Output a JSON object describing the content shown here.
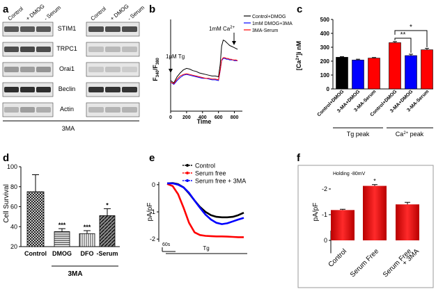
{
  "panels": {
    "a": "a",
    "b": "b",
    "c": "c",
    "d": "d",
    "e": "e",
    "f": "f"
  },
  "panel_a": {
    "columns_left": [
      "Control",
      "+ DMOG",
      "- Serum"
    ],
    "columns_right": [
      "Control",
      "+ DMOG",
      "- Serum"
    ],
    "rows": [
      "STIM1",
      "TRPC1",
      "Orai1",
      "Beclin",
      "Actin"
    ],
    "treatment_label": "3MA"
  },
  "chart_data": [
    {
      "panel": "b",
      "type": "line",
      "xlabel": "Time",
      "ylabel": "F340/F380",
      "ylabel_main": "F",
      "ylabel_sub1": "340",
      "ylabel_sep": "/F",
      "ylabel_sub2": "380",
      "xlim": [
        0,
        900
      ],
      "ylim": [
        0.0,
        1.2
      ],
      "xticks": [
        "0",
        "200",
        "400",
        "600",
        "800"
      ],
      "yticks": [
        "0.0",
        "0.2",
        "0.4",
        "0.6",
        "0.8",
        "1.0",
        "1.2"
      ],
      "annotations": [
        "1μM Tg",
        "1mM Ca2+"
      ],
      "annotation_tg": "1μM Tg",
      "annotation_ca": "1mM Ca",
      "annotation_ca_sup": "2+",
      "series": [
        {
          "name": "Control+DMOG",
          "color": "#000000",
          "x": [
            0,
            40,
            80,
            120,
            160,
            200,
            240,
            280,
            320,
            360,
            400,
            440,
            480,
            520,
            560,
            600,
            620,
            640,
            660,
            680,
            700,
            720,
            740,
            760,
            780,
            800,
            820,
            840
          ],
          "y": [
            0.4,
            0.37,
            0.45,
            0.5,
            0.54,
            0.56,
            0.55,
            0.53,
            0.52,
            0.5,
            0.49,
            0.48,
            0.47,
            0.46,
            0.46,
            0.45,
            0.6,
            0.85,
            0.93,
            0.92,
            0.9,
            0.88,
            0.86,
            0.85,
            0.84,
            0.83,
            0.82,
            0.81
          ]
        },
        {
          "name": "1mM DMOG+3MA",
          "color": "#0000ff",
          "x": [
            0,
            40,
            80,
            120,
            160,
            200,
            240,
            280,
            320,
            360,
            400,
            440,
            480,
            520,
            560,
            600,
            620,
            640,
            660,
            680,
            700,
            720,
            740,
            760,
            780,
            800,
            820,
            840
          ],
          "y": [
            0.38,
            0.35,
            0.4,
            0.44,
            0.47,
            0.48,
            0.47,
            0.46,
            0.45,
            0.44,
            0.43,
            0.43,
            0.42,
            0.41,
            0.41,
            0.4,
            0.52,
            0.66,
            0.69,
            0.69,
            0.68,
            0.68,
            0.67,
            0.67,
            0.67,
            0.66,
            0.66,
            0.66
          ]
        },
        {
          "name": "3MA-Serum",
          "color": "#ff0000",
          "x": [
            0,
            40,
            80,
            120,
            160,
            200,
            240,
            280,
            320,
            360,
            400,
            440,
            480,
            520,
            560,
            600,
            620,
            640,
            660,
            680,
            700,
            720,
            740,
            760,
            780,
            800,
            820,
            840
          ],
          "y": [
            0.38,
            0.36,
            0.42,
            0.46,
            0.48,
            0.49,
            0.48,
            0.47,
            0.46,
            0.45,
            0.44,
            0.43,
            0.43,
            0.42,
            0.42,
            0.41,
            0.53,
            0.67,
            0.7,
            0.7,
            0.69,
            0.69,
            0.68,
            0.68,
            0.67,
            0.67,
            0.67,
            0.66
          ]
        }
      ]
    },
    {
      "panel": "c",
      "type": "bar",
      "ylabel": "[Ca2+]i nM",
      "ylabel_main": "[Ca",
      "ylabel_sup": "2+",
      "ylabel_rest": "]i nM",
      "ylim": [
        0,
        500
      ],
      "yticks": [
        "0",
        "100",
        "200",
        "300",
        "400",
        "500"
      ],
      "categories": [
        "Control+DMOG",
        "3-MA+DMOG",
        "3-MA-Serum",
        "Control+DMOG",
        "3-MA+DMOG",
        "3-MA-Serum"
      ],
      "values": [
        228,
        208,
        222,
        333,
        240,
        282
      ],
      "errors": [
        4,
        6,
        4,
        8,
        10,
        10
      ],
      "colors": [
        "#000000",
        "#0000ff",
        "#ff0000",
        "#ff0000",
        "#0000ff",
        "#ff0000"
      ],
      "groups": [
        "Tg peak",
        "Ca2+ peak"
      ],
      "group_tg": "Tg peak",
      "group_ca_main": "Ca",
      "group_ca_sup": "2+",
      "group_ca_rest": " peak",
      "significance": [
        "**",
        "*"
      ]
    },
    {
      "panel": "d",
      "type": "bar",
      "ylabel": "Cell Survival",
      "ylim": [
        20,
        100
      ],
      "yticks": [
        "20",
        "40",
        "60",
        "80",
        "100"
      ],
      "categories": [
        "Control",
        "DMOG",
        "DFO",
        "-Serum"
      ],
      "values": [
        75,
        35,
        33,
        51
      ],
      "errors": [
        17,
        3,
        3,
        7
      ],
      "significance": [
        "",
        "***",
        "***",
        "*"
      ],
      "group_label": "3MA"
    },
    {
      "panel": "e",
      "type": "line",
      "ylabel": "pA/pF",
      "ylim": [
        -2.2,
        0.2
      ],
      "yticks": [
        "0",
        "-1",
        "-2"
      ],
      "scale_label": "60s",
      "treatment_label": "Tg",
      "series": [
        {
          "name": "Control",
          "color": "#000000",
          "x": [
            0,
            10,
            20,
            30,
            40,
            50,
            60,
            70,
            80,
            90,
            100,
            110,
            120,
            130,
            140
          ],
          "y": [
            0.05,
            0.06,
            0.02,
            -0.1,
            -0.32,
            -0.58,
            -0.82,
            -1.0,
            -1.12,
            -1.18,
            -1.2,
            -1.2,
            -1.18,
            -1.12,
            -1.03
          ]
        },
        {
          "name": "Serum free",
          "color": "#ff0000",
          "x": [
            0,
            10,
            20,
            30,
            40,
            50,
            60,
            70,
            80,
            90,
            100,
            110,
            120,
            130,
            140
          ],
          "y": [
            0.03,
            -0.05,
            -0.35,
            -0.85,
            -1.4,
            -1.75,
            -1.85,
            -1.88,
            -1.89,
            -1.9,
            -1.9,
            -1.91,
            -1.92,
            -1.93,
            -1.93
          ]
        },
        {
          "name": "Serum free + 3MA",
          "color": "#0000ff",
          "x": [
            0,
            10,
            20,
            30,
            40,
            50,
            60,
            70,
            80,
            90,
            100,
            110,
            120,
            130,
            140
          ],
          "y": [
            0.05,
            0.05,
            0.0,
            -0.1,
            -0.3,
            -0.58,
            -0.85,
            -1.1,
            -1.28,
            -1.4,
            -1.45,
            -1.42,
            -1.35,
            -1.28,
            -1.22
          ]
        }
      ]
    },
    {
      "panel": "f",
      "type": "bar",
      "ylabel": "pA/pF",
      "ylim": [
        0,
        -2.5
      ],
      "yticks": [
        "0",
        "-1",
        "-2"
      ],
      "annotation": "Holding -80mV",
      "categories": [
        "Control",
        "Serum Free",
        "Serum Free\n+ 3MA"
      ],
      "category_lines": [
        [
          "Control"
        ],
        [
          "Serum Free"
        ],
        [
          "Serum Free",
          "+ 3MA"
        ]
      ],
      "values": [
        -1.18,
        -2.12,
        -1.4
      ],
      "errors": [
        0.03,
        0.05,
        0.08
      ],
      "color": "#dd1111",
      "significance": [
        "",
        "*",
        ""
      ]
    }
  ]
}
